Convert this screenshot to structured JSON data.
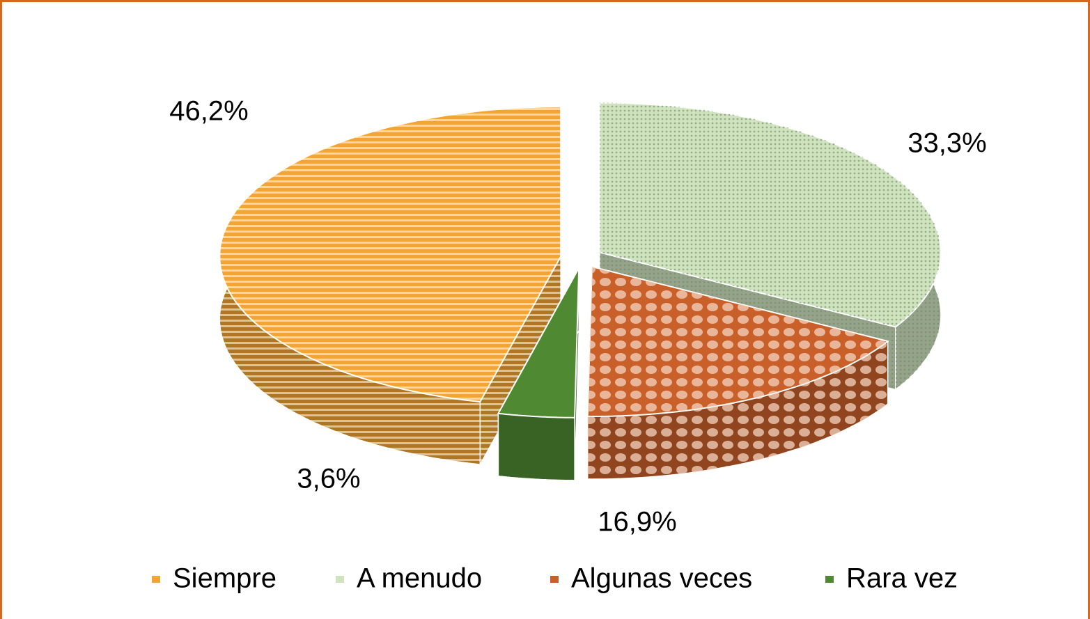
{
  "chart_data": {
    "type": "pie",
    "categories": [
      "Siempre",
      "A menudo",
      "Algunas veces",
      "Rara vez"
    ],
    "values": [
      46.2,
      33.3,
      16.9,
      3.6
    ],
    "value_labels": [
      "46,2%",
      "33,3%",
      "16,9%",
      "3,6%"
    ],
    "colors": [
      "#f2a535",
      "#cfe3bf",
      "#c9602a",
      "#4f8a33"
    ],
    "legend": "bottom"
  }
}
